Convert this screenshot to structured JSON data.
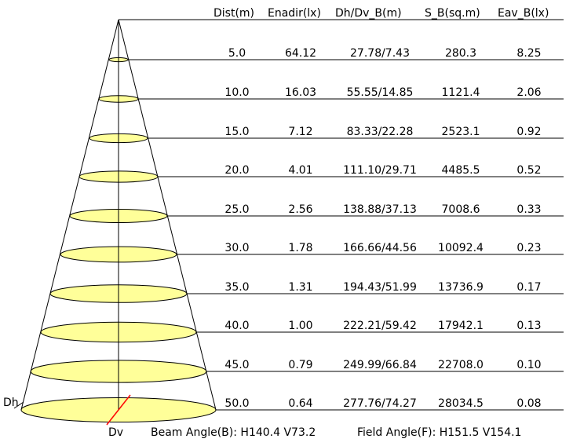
{
  "headers": [
    "Dist(m)",
    "Enadir(lx)",
    "Dh/Dv_B(m)",
    "S_B(sq.m)",
    "Eav_B(lx)"
  ],
  "rows": [
    {
      "dist": "5.0",
      "enadir": "64.12",
      "dhdv": "27.78/7.43",
      "sb": "280.3",
      "eav": "8.25"
    },
    {
      "dist": "10.0",
      "enadir": "16.03",
      "dhdv": "55.55/14.85",
      "sb": "1121.4",
      "eav": "2.06"
    },
    {
      "dist": "15.0",
      "enadir": "7.12",
      "dhdv": "83.33/22.28",
      "sb": "2523.1",
      "eav": "0.92"
    },
    {
      "dist": "20.0",
      "enadir": "4.01",
      "dhdv": "111.10/29.71",
      "sb": "4485.5",
      "eav": "0.52"
    },
    {
      "dist": "25.0",
      "enadir": "2.56",
      "dhdv": "138.88/37.13",
      "sb": "7008.6",
      "eav": "0.33"
    },
    {
      "dist": "30.0",
      "enadir": "1.78",
      "dhdv": "166.66/44.56",
      "sb": "10092.4",
      "eav": "0.23"
    },
    {
      "dist": "35.0",
      "enadir": "1.31",
      "dhdv": "194.43/51.99",
      "sb": "13736.9",
      "eav": "0.17"
    },
    {
      "dist": "40.0",
      "enadir": "1.00",
      "dhdv": "222.21/59.42",
      "sb": "17942.1",
      "eav": "0.13"
    },
    {
      "dist": "45.0",
      "enadir": "0.79",
      "dhdv": "249.99/66.84",
      "sb": "22708.0",
      "eav": "0.10"
    },
    {
      "dist": "50.0",
      "enadir": "0.64",
      "dhdv": "277.76/74.27",
      "sb": "28034.5",
      "eav": "0.08"
    }
  ],
  "labels": {
    "dh": "Dh",
    "dv": "Dv"
  },
  "footer": {
    "beam": "Beam Angle(B): H140.4 V73.2",
    "field": "Field Angle(F): H151.5 V154.1"
  },
  "colors": {
    "ellipse_fill": "#ffff99",
    "line": "#000000",
    "dv_line": "#ff0000"
  }
}
